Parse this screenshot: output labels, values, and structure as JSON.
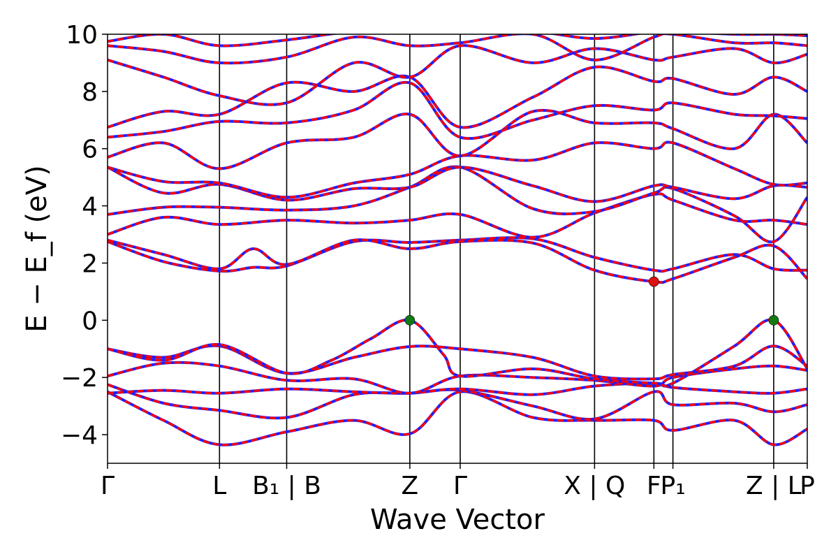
{
  "chart_data": {
    "type": "line",
    "title": "",
    "xlabel": "Wave Vector",
    "ylabel": "E − E_f (eV)",
    "ylim": [
      -5,
      10
    ],
    "yticks": [
      -4,
      -2,
      0,
      2,
      4,
      6,
      8,
      10
    ],
    "ytick_labels": [
      "−4",
      "−2",
      "0",
      "2",
      "4",
      "6",
      "8",
      "10"
    ],
    "xlim": [
      0,
      6.25
    ],
    "kpoints": [
      {
        "x": 0.0,
        "label": "Γ",
        "line": false
      },
      {
        "x": 1.0,
        "label": "L",
        "line": true
      },
      {
        "x": 1.6,
        "label": "B₁ | B",
        "line": true
      },
      {
        "x": 2.7,
        "label": "Z",
        "line": true
      },
      {
        "x": 3.15,
        "label": "Γ",
        "line": true
      },
      {
        "x": 4.35,
        "label": "X | Q",
        "line": true
      },
      {
        "x": 4.88,
        "label": "F",
        "line": true
      },
      {
        "x": 5.05,
        "label": "P₁",
        "line": true
      },
      {
        "x": 5.95,
        "label": "Z | L",
        "line": true
      },
      {
        "x": 6.25,
        "label": "P",
        "line": false
      }
    ],
    "series_colors": {
      "primary": "#ff0000",
      "overlay": "#1f1fff"
    },
    "markers": [
      {
        "x": 2.7,
        "y": 0.0,
        "color": "#137a13",
        "label": "VBM"
      },
      {
        "x": 5.95,
        "y": 0.0,
        "color": "#137a13",
        "label": "VBM"
      },
      {
        "x": 4.88,
        "y": 1.35,
        "color": "#dd1111",
        "label": "CBM"
      }
    ],
    "bands": [
      {
        "name": "v1",
        "x": [
          0,
          0.5,
          1.0,
          1.6,
          2.2,
          2.7,
          3.15,
          3.8,
          4.35,
          4.88,
          5.05,
          5.6,
          5.95,
          6.25
        ],
        "y": [
          -2.5,
          -3.5,
          -4.35,
          -3.9,
          -3.5,
          -3.97,
          -2.5,
          -3.4,
          -3.5,
          -3.5,
          -3.85,
          -3.5,
          -4.35,
          -3.8
        ]
      },
      {
        "name": "v2",
        "x": [
          0,
          0.5,
          1.0,
          1.6,
          2.2,
          2.7,
          3.15,
          3.8,
          4.35,
          4.88,
          5.05,
          5.6,
          5.95,
          6.25
        ],
        "y": [
          -2.25,
          -2.9,
          -3.15,
          -3.4,
          -2.6,
          -2.55,
          -2.45,
          -3.0,
          -3.45,
          -2.5,
          -2.95,
          -2.9,
          -3.2,
          -2.95
        ]
      },
      {
        "name": "v3",
        "x": [
          0,
          0.5,
          1.0,
          1.6,
          2.2,
          2.7,
          3.15,
          3.8,
          4.35,
          4.88,
          5.05,
          5.6,
          5.95,
          6.25
        ],
        "y": [
          -2.55,
          -2.45,
          -2.55,
          -2.4,
          -2.5,
          -2.55,
          -2.4,
          -2.6,
          -2.3,
          -2.2,
          -2.35,
          -2.5,
          -2.55,
          -2.4
        ]
      },
      {
        "name": "v4",
        "x": [
          0,
          0.5,
          1.0,
          1.6,
          2.2,
          2.7,
          3.15,
          3.8,
          4.35,
          4.88,
          5.05,
          5.6,
          5.95,
          6.25
        ],
        "y": [
          -1.95,
          -1.5,
          -1.6,
          -2.1,
          -2.05,
          -2.55,
          -1.95,
          -2.0,
          -2.1,
          -2.3,
          -2.0,
          -1.7,
          -1.6,
          -1.75
        ]
      },
      {
        "name": "v5",
        "x": [
          0,
          0.5,
          1.0,
          1.6,
          2.2,
          2.7,
          3.15,
          3.8,
          4.35,
          4.88,
          5.05,
          5.6,
          5.95,
          6.25
        ],
        "y": [
          -1.0,
          -1.3,
          -0.9,
          -1.85,
          -1.3,
          -0.92,
          -1.0,
          -1.3,
          -1.95,
          -2.05,
          -1.9,
          -1.6,
          -0.9,
          -1.6
        ]
      },
      {
        "name": "v6",
        "x": [
          0,
          0.5,
          1.0,
          1.6,
          2.0,
          2.35,
          2.7,
          3.0,
          3.15,
          3.8,
          4.35,
          4.88,
          5.05,
          5.6,
          5.95,
          6.25
        ],
        "y": [
          -1.0,
          -1.4,
          -0.85,
          -1.85,
          -1.4,
          -0.65,
          0.0,
          -1.2,
          -1.95,
          -1.7,
          -2.05,
          -2.2,
          -2.2,
          -0.9,
          0.0,
          -1.7
        ]
      },
      {
        "name": "c1",
        "x": [
          0,
          0.5,
          1.0,
          1.3,
          1.6,
          2.2,
          2.7,
          3.15,
          3.8,
          4.35,
          4.88,
          5.05,
          5.6,
          5.95,
          6.25
        ],
        "y": [
          2.75,
          2.05,
          1.72,
          1.85,
          1.9,
          2.75,
          2.72,
          2.8,
          2.85,
          2.2,
          1.75,
          1.8,
          2.3,
          1.8,
          1.75
        ]
      },
      {
        "name": "c2",
        "x": [
          0,
          0.5,
          1.0,
          1.3,
          1.6,
          2.2,
          2.7,
          3.15,
          3.8,
          4.35,
          4.88,
          5.05,
          5.6,
          5.95,
          6.25
        ],
        "y": [
          2.8,
          2.3,
          1.8,
          2.5,
          1.95,
          2.8,
          2.5,
          2.75,
          2.7,
          1.75,
          1.35,
          1.45,
          2.2,
          2.6,
          1.45
        ]
      },
      {
        "name": "c3",
        "x": [
          0,
          0.5,
          1.0,
          1.6,
          2.2,
          2.7,
          3.15,
          3.8,
          4.35,
          4.88,
          5.05,
          5.6,
          5.95,
          6.25
        ],
        "y": [
          3.0,
          3.6,
          3.35,
          3.5,
          3.4,
          3.5,
          3.7,
          2.9,
          3.75,
          4.4,
          4.2,
          3.5,
          3.5,
          3.35
        ]
      },
      {
        "name": "c4",
        "x": [
          0,
          0.5,
          1.0,
          1.6,
          2.2,
          2.7,
          3.15,
          3.8,
          4.35,
          4.88,
          5.05,
          5.6,
          5.95,
          6.25
        ],
        "y": [
          3.7,
          3.95,
          3.95,
          3.85,
          4.0,
          4.65,
          5.35,
          3.9,
          3.8,
          4.45,
          4.6,
          3.65,
          2.75,
          4.3
        ]
      },
      {
        "name": "c5",
        "x": [
          0,
          0.5,
          1.0,
          1.6,
          2.2,
          2.7,
          3.15,
          3.8,
          4.35,
          4.88,
          5.05,
          5.6,
          5.95,
          6.25
        ],
        "y": [
          5.35,
          4.45,
          4.75,
          4.2,
          4.6,
          4.65,
          5.35,
          4.7,
          4.15,
          4.7,
          4.65,
          4.25,
          4.7,
          4.65
        ]
      },
      {
        "name": "c6",
        "x": [
          0,
          0.5,
          1.0,
          1.6,
          2.2,
          2.7,
          3.15,
          3.8,
          4.35,
          4.88,
          5.05,
          5.6,
          5.95,
          6.25
        ],
        "y": [
          5.35,
          4.85,
          4.8,
          4.3,
          4.8,
          5.1,
          5.75,
          5.6,
          6.2,
          6.0,
          6.2,
          5.3,
          4.75,
          4.8
        ]
      },
      {
        "name": "c7",
        "x": [
          0,
          0.5,
          1.0,
          1.6,
          2.2,
          2.7,
          3.15,
          3.8,
          4.35,
          4.88,
          5.05,
          5.6,
          5.95,
          6.25
        ],
        "y": [
          5.7,
          6.2,
          5.3,
          6.2,
          6.4,
          7.2,
          5.75,
          7.3,
          6.9,
          6.9,
          6.7,
          6.0,
          7.2,
          6.2
        ]
      },
      {
        "name": "c8",
        "x": [
          0,
          0.5,
          1.0,
          1.6,
          2.2,
          2.7,
          3.15,
          3.8,
          4.35,
          4.88,
          5.05,
          5.6,
          5.95,
          6.25
        ],
        "y": [
          6.4,
          6.6,
          6.95,
          6.9,
          7.35,
          8.3,
          6.4,
          7.0,
          7.5,
          7.35,
          7.6,
          7.2,
          7.15,
          7.05
        ]
      },
      {
        "name": "c9",
        "x": [
          0,
          0.5,
          1.0,
          1.6,
          2.2,
          2.7,
          3.15,
          3.8,
          4.35,
          4.88,
          5.05,
          5.6,
          5.95,
          6.25
        ],
        "y": [
          6.75,
          7.3,
          7.2,
          8.3,
          8.0,
          8.5,
          6.75,
          7.8,
          8.85,
          8.35,
          8.45,
          7.9,
          8.5,
          8.0
        ]
      },
      {
        "name": "c10",
        "x": [
          0,
          0.5,
          1.0,
          1.6,
          2.2,
          2.7,
          3.15,
          3.8,
          4.35,
          4.88,
          5.05,
          5.6,
          5.95,
          6.25
        ],
        "y": [
          9.1,
          8.5,
          7.85,
          7.6,
          9.0,
          8.5,
          9.6,
          9.0,
          9.5,
          9.1,
          9.2,
          9.5,
          9.0,
          9.3
        ]
      },
      {
        "name": "c11",
        "x": [
          0,
          0.5,
          1.0,
          1.6,
          2.2,
          2.7,
          3.15,
          3.8,
          4.35,
          4.88,
          5.05,
          5.6,
          5.95,
          6.25
        ],
        "y": [
          9.6,
          9.4,
          9.0,
          9.2,
          9.9,
          9.6,
          9.7,
          10.0,
          9.1,
          9.9,
          10.0,
          9.7,
          9.7,
          9.6
        ]
      },
      {
        "name": "c12",
        "x": [
          0,
          0.5,
          1.0,
          1.6,
          2.2,
          2.7,
          3.15,
          3.8,
          4.35,
          4.88,
          5.05,
          5.6,
          5.95,
          6.25
        ],
        "y": [
          9.75,
          10.0,
          9.6,
          9.8,
          10.1,
          10.1,
          10.1,
          10.1,
          9.85,
          10.1,
          10.1,
          10.0,
          10.0,
          9.95
        ]
      }
    ]
  }
}
